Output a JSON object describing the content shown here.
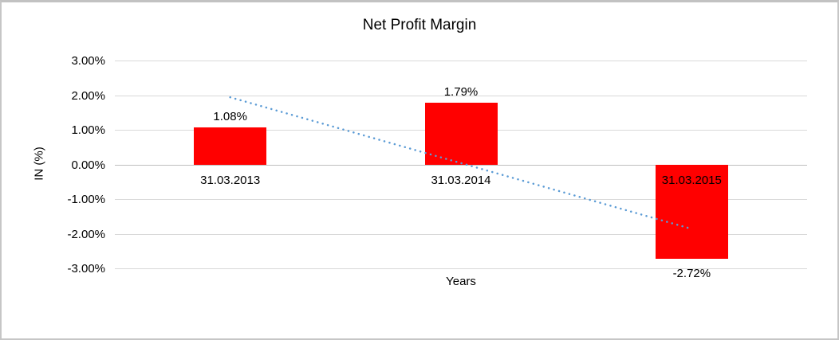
{
  "chart_data": {
    "type": "bar",
    "title": "Net Profit Margin",
    "xlabel": "Years",
    "ylabel": "IN (%)",
    "categories": [
      "31.03.2013",
      "31.03.2014",
      "31.03.2015"
    ],
    "values": [
      1.08,
      1.79,
      -2.72
    ],
    "data_labels": [
      "1.08%",
      "1.79%",
      "-2.72%"
    ],
    "y_tick_labels": [
      "3.00%",
      "2.00%",
      "1.00%",
      "0.00%",
      "-1.00%",
      "-2.00%",
      "-3.00%"
    ],
    "y_tick_values": [
      3,
      2,
      1,
      0,
      -1,
      -2,
      -3
    ],
    "ylim": [
      -3,
      3
    ],
    "grid": true,
    "legend": "none",
    "bar_color": "#ff0000",
    "trendline": {
      "type": "linear",
      "style": "dotted",
      "color": "#5b9bd5",
      "start_value": 1.95,
      "end_value": -1.85
    }
  },
  "frame": {
    "border_color": "#c6c6c6"
  }
}
